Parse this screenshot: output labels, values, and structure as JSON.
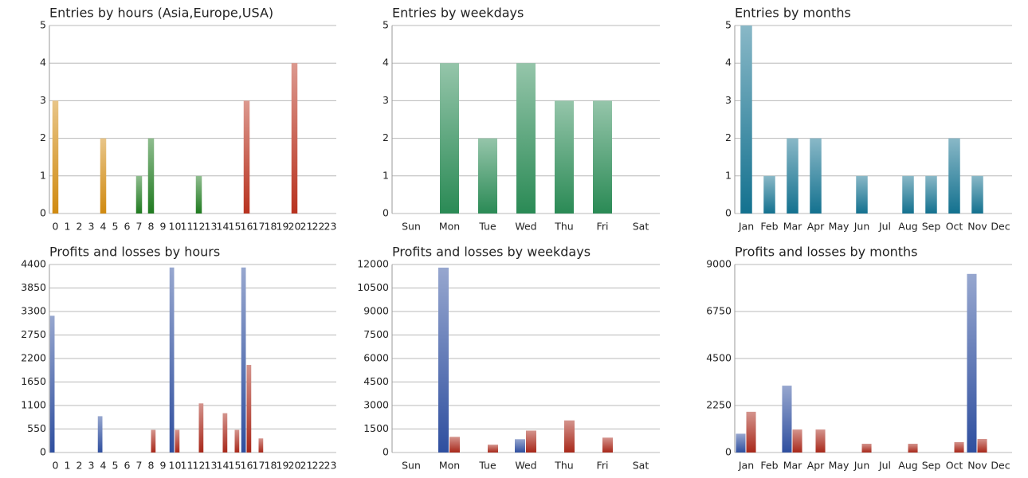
{
  "chart_data": [
    {
      "type": "bar",
      "title": "Entries by hours (Asia,Europe,USA)",
      "categories": [
        "0",
        "1",
        "2",
        "3",
        "4",
        "5",
        "6",
        "7",
        "8",
        "9",
        "10",
        "11",
        "12",
        "13",
        "14",
        "15",
        "16",
        "17",
        "18",
        "19",
        "20",
        "21",
        "22",
        "23"
      ],
      "values": [
        3,
        0,
        0,
        0,
        2,
        0,
        0,
        1,
        2,
        0,
        0,
        0,
        1,
        0,
        0,
        0,
        3,
        0,
        0,
        0,
        4,
        0,
        0,
        0
      ],
      "colors": [
        "#d08a10",
        "#d08a10",
        "#d08a10",
        "#d08a10",
        "#d08a10",
        "#d08a10",
        "#d08a10",
        "#1f7a1f",
        "#1f7a1f",
        "#1f7a1f",
        "#1f7a1f",
        "#1f7a1f",
        "#1f7a1f",
        "#1f7a1f",
        "#1f7a1f",
        "#b8321f",
        "#b8321f",
        "#b8321f",
        "#b8321f",
        "#b8321f",
        "#b8321f",
        "#b8321f",
        "#b8321f",
        "#b8321f"
      ],
      "ylim": [
        0,
        5
      ],
      "yticks": [
        0,
        1,
        2,
        3,
        4,
        5
      ],
      "grid": true
    },
    {
      "type": "bar",
      "title": "Entries by weekdays",
      "categories": [
        "Sun",
        "Mon",
        "Tue",
        "Wed",
        "Thu",
        "Fri",
        "Sat"
      ],
      "values": [
        0,
        4,
        2,
        4,
        3,
        3,
        0
      ],
      "color": "#2a8a55",
      "ylim": [
        0,
        5
      ],
      "yticks": [
        0,
        1,
        2,
        3,
        4,
        5
      ],
      "grid": true
    },
    {
      "type": "bar",
      "title": "Entries by months",
      "categories": [
        "Jan",
        "Feb",
        "Mar",
        "Apr",
        "May",
        "Jun",
        "Jul",
        "Aug",
        "Sep",
        "Oct",
        "Nov",
        "Dec"
      ],
      "values": [
        5,
        1,
        2,
        2,
        0,
        1,
        0,
        1,
        1,
        2,
        1,
        0
      ],
      "color": "#13718f",
      "ylim": [
        0,
        5
      ],
      "yticks": [
        0,
        1,
        2,
        3,
        4,
        5
      ],
      "grid": true
    },
    {
      "type": "grouped-bar",
      "title": "Profits and losses by hours",
      "categories": [
        "0",
        "1",
        "2",
        "3",
        "4",
        "5",
        "6",
        "7",
        "8",
        "9",
        "10",
        "11",
        "12",
        "13",
        "14",
        "15",
        "16",
        "17",
        "18",
        "19",
        "20",
        "21",
        "22",
        "23"
      ],
      "series": [
        {
          "color": "#2f4f9f",
          "values": [
            3200,
            0,
            0,
            0,
            850,
            0,
            0,
            0,
            0,
            0,
            4330,
            0,
            0,
            0,
            0,
            0,
            4330,
            0,
            0,
            0,
            0,
            0,
            0,
            0
          ]
        },
        {
          "color": "#a8281a",
          "values": [
            0,
            0,
            0,
            0,
            0,
            0,
            0,
            0,
            530,
            0,
            530,
            0,
            1150,
            0,
            920,
            530,
            2050,
            330,
            0,
            0,
            0,
            0,
            0,
            0
          ]
        }
      ],
      "ylim": [
        0,
        4400
      ],
      "yticks": [
        0,
        550,
        1100,
        1650,
        2200,
        2750,
        3300,
        3850,
        4400
      ],
      "grid": true
    },
    {
      "type": "grouped-bar",
      "title": "Profits and losses by weekdays",
      "categories": [
        "Sun",
        "Mon",
        "Tue",
        "Wed",
        "Thu",
        "Fri",
        "Sat"
      ],
      "series": [
        {
          "color": "#2f4f9f",
          "values": [
            0,
            11800,
            0,
            850,
            0,
            0,
            0
          ]
        },
        {
          "color": "#a8281a",
          "values": [
            0,
            1000,
            500,
            1400,
            2050,
            950,
            0
          ]
        }
      ],
      "ylim": [
        0,
        12000
      ],
      "yticks": [
        0,
        1500,
        3000,
        4500,
        6000,
        7500,
        9000,
        10500,
        12000
      ],
      "grid": true
    },
    {
      "type": "grouped-bar",
      "title": "Profits and losses by months",
      "categories": [
        "Jan",
        "Feb",
        "Mar",
        "Apr",
        "May",
        "Jun",
        "Jul",
        "Aug",
        "Sep",
        "Oct",
        "Nov",
        "Dec"
      ],
      "series": [
        {
          "color": "#2f4f9f",
          "values": [
            900,
            0,
            3200,
            0,
            0,
            0,
            0,
            0,
            0,
            0,
            8550,
            0
          ]
        },
        {
          "color": "#a8281a",
          "values": [
            1950,
            0,
            1100,
            1100,
            0,
            420,
            0,
            420,
            0,
            500,
            650,
            0
          ]
        }
      ],
      "ylim": [
        0,
        9000
      ],
      "yticks": [
        0,
        2250,
        4500,
        6750,
        9000
      ],
      "grid": true
    }
  ]
}
